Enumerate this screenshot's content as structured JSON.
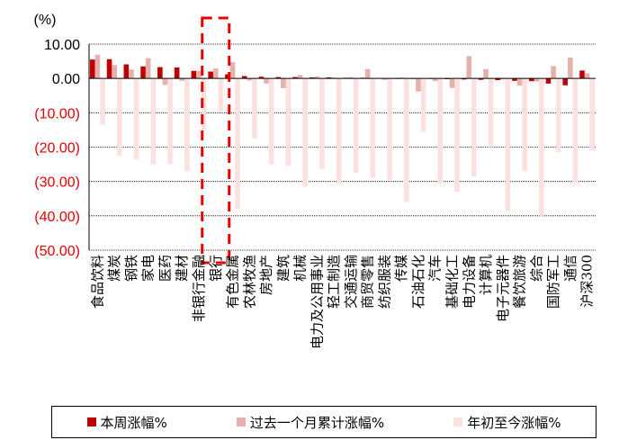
{
  "chart_data": {
    "type": "bar",
    "unit_label": "(%)",
    "ylim": [
      -50,
      10
    ],
    "yticks": [
      10,
      0,
      -10,
      -20,
      -30,
      -40,
      -50
    ],
    "ytick_labels": [
      "10.00",
      "0.00",
      "(10.00)",
      "(20.00)",
      "(30.00)",
      "(40.00)",
      "(50.00)"
    ],
    "negative_label_color": "#e60000",
    "gridlines": true,
    "highlight_category": "银行",
    "highlight_color": "#e60000",
    "categories": [
      "食品饮料",
      "煤炭",
      "钢铁",
      "家电",
      "医药",
      "建材",
      "非银行金融",
      "银行",
      "有色金属",
      "农林牧渔",
      "房地产",
      "建筑",
      "机械",
      "电力及公用事业",
      "轻工制造",
      "交通运输",
      "商贸零售",
      "纺织服装",
      "传媒",
      "石油石化",
      "汽车",
      "基础化工",
      "电力设备",
      "计算机",
      "电子元器件",
      "餐饮旅游",
      "综合",
      "国防军工",
      "通信",
      "沪深300"
    ],
    "series": [
      {
        "name": "本周涨幅%",
        "color": "#c00000",
        "values": [
          5.5,
          5.6,
          4.1,
          3.5,
          3.3,
          3.2,
          2.2,
          2.0,
          1.2,
          0.7,
          0.5,
          0.4,
          0.4,
          0.3,
          0.3,
          0.2,
          0.2,
          0.1,
          0.0,
          -0.1,
          -0.1,
          -0.2,
          -0.3,
          -0.4,
          -0.5,
          -0.7,
          -0.8,
          -1.5,
          -2.0,
          2.3
        ]
      },
      {
        "name": "过去一个月累计涨幅%",
        "color": "#e6b0ad",
        "values": [
          6.9,
          3.9,
          2.6,
          5.9,
          -1.9,
          -0.7,
          2.2,
          2.9,
          4.7,
          -0.6,
          -1.5,
          -2.8,
          1.0,
          0.6,
          0.3,
          0.4,
          2.7,
          -0.4,
          0.3,
          -3.8,
          -0.8,
          -2.8,
          6.5,
          2.7,
          -0.3,
          -2.1,
          -0.9,
          3.6,
          6.1,
          1.5
        ]
      },
      {
        "name": "年初至今涨幅%",
        "color": "#fbe1e0",
        "values": [
          -13.5,
          -22.5,
          -23.5,
          -25.0,
          -25.0,
          -27.0,
          -15.0,
          -9.5,
          -38.0,
          -17.5,
          -25.0,
          -25.5,
          -31.5,
          -26.5,
          -30.5,
          -27.5,
          -29.0,
          -29.5,
          -36.0,
          -15.5,
          -30.5,
          -33.0,
          -28.5,
          -20.0,
          -38.5,
          -27.0,
          -40.0,
          -21.5,
          -30.5,
          -21.0
        ]
      }
    ]
  }
}
